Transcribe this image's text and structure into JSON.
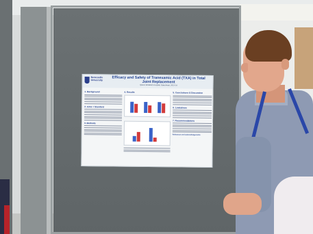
{
  "poster": {
    "logo_text": "Newcastle\nUniversity",
    "title": "Efficacy and Safety of Tranexamic Acid (TXA) in Total Joint Replacement",
    "subtitle": "Queen Elizabeth Hospital, Gateshead, 2013-14",
    "sections": [
      {
        "heading": "1. Background",
        "column": 1
      },
      {
        "heading": "2. Aims + Standard",
        "column": 1
      },
      {
        "heading": "3. Methods",
        "column": 1
      },
      {
        "heading": "4. Results",
        "column": 2
      },
      {
        "heading": "5. Conclusions & Discussion",
        "column": 3
      },
      {
        "heading": "6. Limitations",
        "column": 3
      },
      {
        "heading": "7. Recommendations",
        "column": 3
      },
      {
        "heading": "References and Acknowledgements",
        "column": 3
      }
    ]
  },
  "colors": {
    "board": "#62686a",
    "poster_title": "#1f3f8f",
    "bar_blue": "#3a63c8",
    "bar_red": "#d23b3b",
    "shirt": "#8e9ab3",
    "lanyard": "#2a47a8"
  }
}
